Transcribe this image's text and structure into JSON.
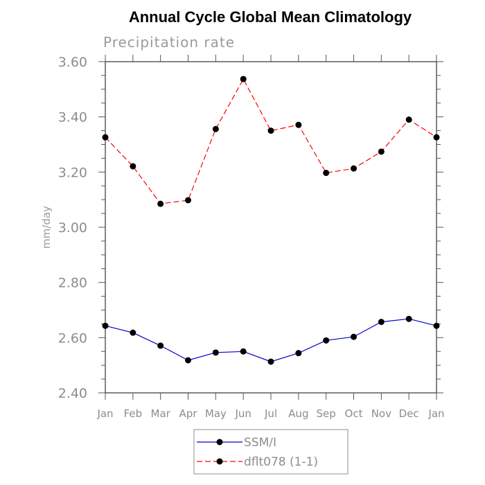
{
  "chart_data": {
    "type": "line",
    "title": "Annual Cycle Global Mean Climatology",
    "subtitle": "Precipitation rate",
    "ylabel": "mm/day",
    "xlabel": "",
    "categories": [
      "Jan",
      "Feb",
      "Mar",
      "Apr",
      "May",
      "Jun",
      "Jul",
      "Aug",
      "Sep",
      "Oct",
      "Nov",
      "Dec",
      "Jan"
    ],
    "ylim": [
      2.4,
      3.6
    ],
    "yticks": [
      2.4,
      2.6,
      2.8,
      3.0,
      3.2,
      3.4,
      3.6
    ],
    "ytick_labels": [
      "2.40",
      "2.60",
      "2.80",
      "3.00",
      "3.20",
      "3.40",
      "3.60"
    ],
    "grid": false,
    "legend_position": "bottom-center",
    "series": [
      {
        "name": "SSM/I",
        "color": "#0000cc",
        "line_style": "solid",
        "marker": "filled-circle",
        "values": [
          2.643,
          2.618,
          2.571,
          2.518,
          2.546,
          2.55,
          2.513,
          2.544,
          2.59,
          2.603,
          2.657,
          2.668,
          2.643
        ]
      },
      {
        "name": "dflt078 (1-1)",
        "color": "#ff0000",
        "line_style": "dashed",
        "marker": "filled-circle",
        "values": [
          3.326,
          3.221,
          3.085,
          3.098,
          3.356,
          3.537,
          3.35,
          3.371,
          3.197,
          3.213,
          3.274,
          3.39,
          3.326
        ]
      }
    ]
  }
}
